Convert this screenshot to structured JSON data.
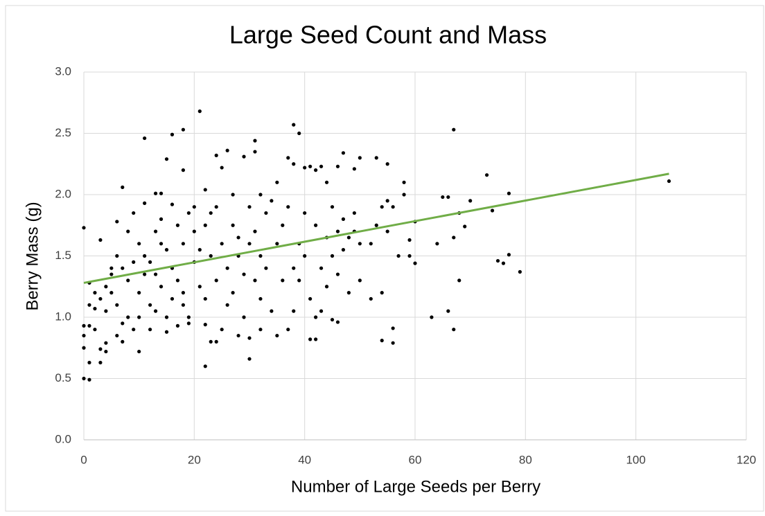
{
  "chart_data": {
    "type": "scatter",
    "title": "Large Seed Count and Mass",
    "x_label": "Number of Large Seeds per Berry",
    "y_label": "Berry Mass (g)",
    "color": "#000000",
    "grid": true,
    "xlim": [
      0,
      120
    ],
    "ylim": [
      0,
      3
    ],
    "xticks": [
      0,
      20,
      40,
      60,
      80,
      100,
      120
    ],
    "yticks": [
      {
        "value": 0,
        "label": "0.0"
      },
      0.5,
      {
        "value": 1,
        "label": "1.0"
      },
      1.5,
      {
        "value": 2,
        "label": "2.0"
      },
      2.5,
      {
        "value": 3,
        "label": "3.0"
      }
    ],
    "x": [
      0,
      0,
      1,
      1,
      21,
      38,
      39,
      18,
      16,
      11,
      67,
      106,
      79,
      77,
      77,
      73,
      74,
      75,
      76,
      67,
      66,
      63,
      56,
      54,
      56,
      22,
      30,
      64,
      65,
      66,
      67,
      68,
      69,
      70,
      68,
      60,
      59,
      60,
      58,
      58,
      47,
      50,
      49,
      53,
      55,
      24,
      26,
      15,
      31,
      40,
      41,
      42,
      43,
      44,
      46,
      7,
      13,
      14,
      18,
      0,
      0,
      0,
      1,
      1,
      1,
      2,
      2,
      2,
      3,
      3,
      3,
      3,
      4,
      4,
      4,
      4,
      5,
      5,
      5,
      6,
      6,
      6,
      6,
      7,
      7,
      7,
      8,
      8,
      8,
      9,
      9,
      9,
      10,
      10,
      10,
      10,
      11,
      11,
      11,
      12,
      12,
      12,
      13,
      13,
      13,
      14,
      14,
      14,
      15,
      15,
      15,
      16,
      16,
      16,
      17,
      17,
      17,
      18,
      18,
      18,
      19,
      19,
      19,
      20,
      20,
      20,
      21,
      21,
      22,
      22,
      22,
      22,
      23,
      23,
      23,
      24,
      24,
      24,
      25,
      25,
      25,
      26,
      26,
      27,
      27,
      27,
      28,
      28,
      28,
      29,
      29,
      29,
      30,
      30,
      30,
      31,
      31,
      31,
      32,
      32,
      32,
      32,
      33,
      33,
      34,
      34,
      35,
      35,
      35,
      36,
      36,
      37,
      37,
      37,
      38,
      38,
      38,
      39,
      39,
      40,
      40,
      41,
      41,
      42,
      42,
      42,
      43,
      43,
      44,
      44,
      45,
      45,
      45,
      46,
      46,
      46,
      47,
      47,
      48,
      48,
      49,
      49,
      50,
      50,
      52,
      52,
      53,
      54,
      54,
      55,
      55,
      56,
      57,
      59
    ],
    "values": [
      1.73,
      0.5,
      0.49,
      0.63,
      2.68,
      2.57,
      2.5,
      2.53,
      2.49,
      2.46,
      2.53,
      2.11,
      1.37,
      1.51,
      2.01,
      2.16,
      1.87,
      1.46,
      1.44,
      0.9,
      1.05,
      1.0,
      0.79,
      0.81,
      0.91,
      0.6,
      0.66,
      1.6,
      1.98,
      1.98,
      1.65,
      1.3,
      1.74,
      1.95,
      1.85,
      1.44,
      1.5,
      1.78,
      2.0,
      2.1,
      2.34,
      2.3,
      2.21,
      2.3,
      2.25,
      2.32,
      2.36,
      2.29,
      2.44,
      2.22,
      2.23,
      2.2,
      2.23,
      2.1,
      2.23,
      2.06,
      2.01,
      2.01,
      2.2,
      0.93,
      0.85,
      0.75,
      0.93,
      1.1,
      1.28,
      0.9,
      1.07,
      1.2,
      1.63,
      1.15,
      0.74,
      0.63,
      0.72,
      0.79,
      1.25,
      1.05,
      1.4,
      1.35,
      1.2,
      1.78,
      1.5,
      0.85,
      1.1,
      1.4,
      0.95,
      0.8,
      1.7,
      1.3,
      1.0,
      1.45,
      1.85,
      0.9,
      1.6,
      1.2,
      0.72,
      1.0,
      1.93,
      1.5,
      1.35,
      1.45,
      1.1,
      0.9,
      1.7,
      1.35,
      1.05,
      1.8,
      1.6,
      1.25,
      1.55,
      1.0,
      0.88,
      1.92,
      1.4,
      1.15,
      1.75,
      1.3,
      0.93,
      1.2,
      1.1,
      1.6,
      1.0,
      0.95,
      1.85,
      1.9,
      1.45,
      1.7,
      1.55,
      1.25,
      2.04,
      1.75,
      0.94,
      1.15,
      0.8,
      1.85,
      1.5,
      1.9,
      1.3,
      0.8,
      2.22,
      1.6,
      0.9,
      1.4,
      1.1,
      2.0,
      1.75,
      1.2,
      1.65,
      0.85,
      1.5,
      2.31,
      1.35,
      1.0,
      1.9,
      1.6,
      0.83,
      2.35,
      1.7,
      1.3,
      2.0,
      1.5,
      1.15,
      0.9,
      1.85,
      1.4,
      1.95,
      1.05,
      2.1,
      1.6,
      0.85,
      1.75,
      1.3,
      2.3,
      1.9,
      0.9,
      2.25,
      1.4,
      1.05,
      1.6,
      1.3,
      1.85,
      1.5,
      1.15,
      0.82,
      1.75,
      1.0,
      0.82,
      1.4,
      1.05,
      1.65,
      1.25,
      1.9,
      1.5,
      0.98,
      1.7,
      0.96,
      1.35,
      1.55,
      1.8,
      1.2,
      1.65,
      1.85,
      1.7,
      1.3,
      1.6,
      1.6,
      1.15,
      1.75,
      1.2,
      1.9,
      1.95,
      1.7,
      1.9,
      1.5,
      1.63
    ],
    "trendline": {
      "x": [
        0,
        106
      ],
      "y": [
        1.28,
        2.17
      ],
      "color": "#70ad47"
    }
  }
}
